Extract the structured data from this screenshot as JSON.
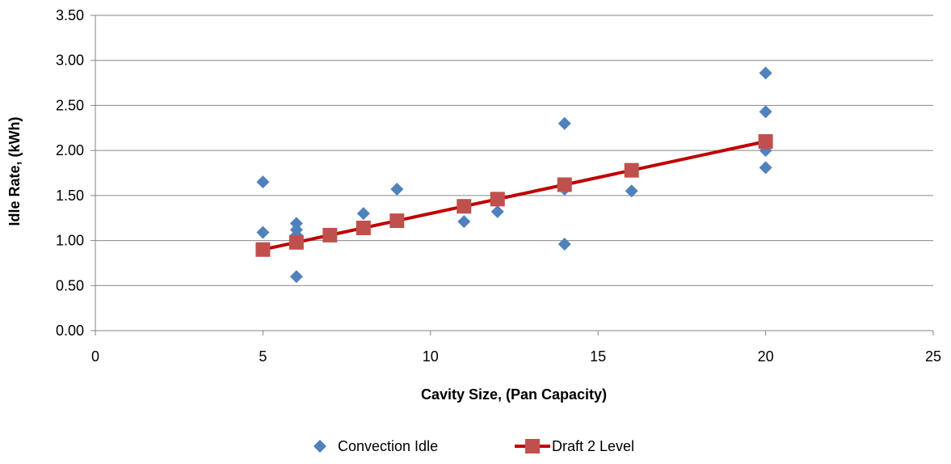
{
  "chart_data": {
    "type": "scatter",
    "title": "",
    "xlabel": "Cavity Size, (Pan Capacity)",
    "ylabel": "Idle Rate, (kWh)",
    "xlim": [
      0,
      25
    ],
    "ylim": [
      0,
      3.5
    ],
    "x_ticks": [
      "0",
      "5",
      "10",
      "15",
      "20",
      "25"
    ],
    "y_ticks": [
      "0.00",
      "0.50",
      "1.00",
      "1.50",
      "2.00",
      "2.50",
      "3.00",
      "3.50"
    ],
    "grid": "horizontal",
    "legend_position": "bottom",
    "series": [
      {
        "name": "Convection Idle",
        "type": "scatter",
        "marker": "diamond",
        "color": "#4F81BD",
        "points": [
          [
            5,
            1.65
          ],
          [
            5,
            1.09
          ],
          [
            6,
            1.19
          ],
          [
            6,
            1.12
          ],
          [
            6,
            1.06
          ],
          [
            6,
            1.02
          ],
          [
            6,
            0.6
          ],
          [
            7,
            1.05
          ],
          [
            8,
            1.3
          ],
          [
            9,
            1.57
          ],
          [
            11,
            1.21
          ],
          [
            12,
            1.32
          ],
          [
            14,
            2.3
          ],
          [
            14,
            1.6
          ],
          [
            14,
            1.57
          ],
          [
            14,
            0.96
          ],
          [
            16,
            1.55
          ],
          [
            20,
            2.86
          ],
          [
            20,
            2.43
          ],
          [
            20,
            2.0
          ],
          [
            20,
            1.81
          ]
        ]
      },
      {
        "name": "Draft 2 Level",
        "type": "line",
        "marker": "square",
        "color": "#C0504D",
        "line_color": "#C00000",
        "points": [
          [
            5,
            0.9
          ],
          [
            6,
            0.98
          ],
          [
            7,
            1.06
          ],
          [
            8,
            1.14
          ],
          [
            9,
            1.22
          ],
          [
            11,
            1.38
          ],
          [
            12,
            1.46
          ],
          [
            14,
            1.62
          ],
          [
            16,
            1.78
          ],
          [
            20,
            2.1
          ]
        ]
      }
    ]
  }
}
